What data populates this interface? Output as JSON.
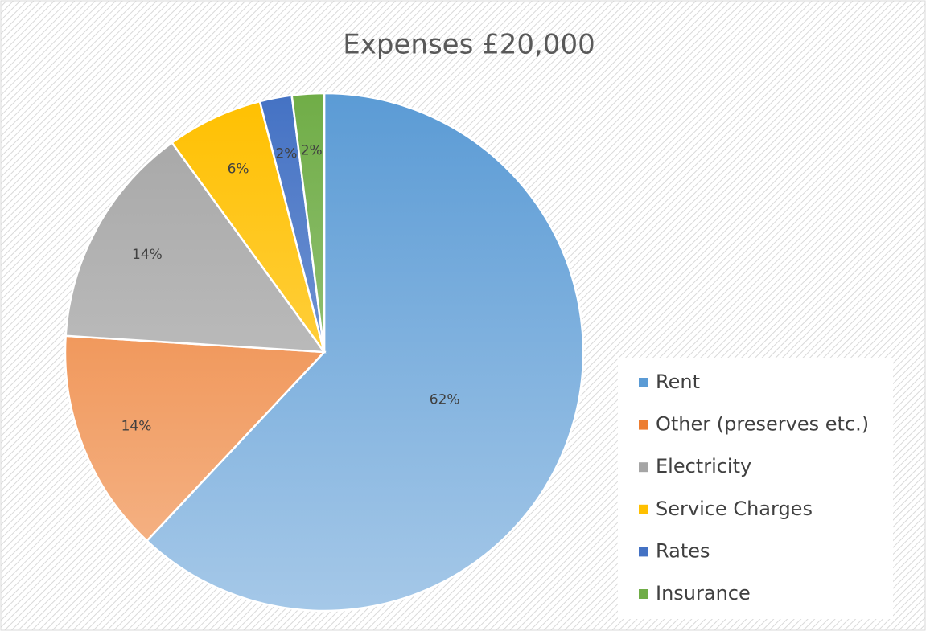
{
  "chart_data": {
    "type": "pie",
    "title": "Expenses £20,000",
    "categories": [
      "Rent",
      "Other (preserves  etc.)",
      "Electricity",
      "Service Charges",
      "Rates",
      "Insurance"
    ],
    "values": [
      62,
      14,
      14,
      6,
      2,
      2
    ],
    "value_labels": [
      "62%",
      "14%",
      "14%",
      "6%",
      "2%",
      "2%"
    ],
    "colors": [
      "#5b9bd5",
      "#ed7d31",
      "#a5a5a5",
      "#ffc000",
      "#4472c4",
      "#70ad47"
    ],
    "legend": "right"
  }
}
